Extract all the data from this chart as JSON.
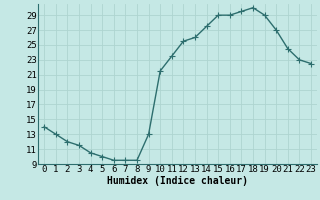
{
  "x": [
    0,
    1,
    2,
    3,
    4,
    5,
    6,
    7,
    8,
    9,
    10,
    11,
    12,
    13,
    14,
    15,
    16,
    17,
    18,
    19,
    20,
    21,
    22,
    23
  ],
  "y": [
    14,
    13,
    12,
    11.5,
    10.5,
    10,
    9.5,
    9.5,
    9.5,
    13,
    21.5,
    23.5,
    25.5,
    26,
    27.5,
    29,
    29,
    29.5,
    30,
    29,
    27,
    24.5,
    23,
    22.5
  ],
  "line_color": "#2d6e6e",
  "marker": "+",
  "bg_color": "#c5e8e5",
  "grid_color": "#aed4d0",
  "xlabel": "Humidex (Indice chaleur)",
  "ylim": [
    9,
    30
  ],
  "xlim": [
    -0.5,
    23.5
  ],
  "yticks": [
    9,
    11,
    13,
    15,
    17,
    19,
    21,
    23,
    25,
    27,
    29
  ],
  "xticks": [
    0,
    1,
    2,
    3,
    4,
    5,
    6,
    7,
    8,
    9,
    10,
    11,
    12,
    13,
    14,
    15,
    16,
    17,
    18,
    19,
    20,
    21,
    22,
    23
  ],
  "xlabel_fontsize": 7,
  "tick_fontsize": 6.5,
  "line_width": 1.0,
  "marker_size": 4
}
